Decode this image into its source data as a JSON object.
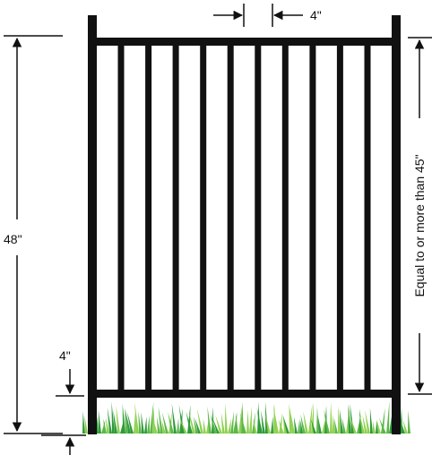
{
  "labels": {
    "picket_spacing": "4\"",
    "total_height": "48\"",
    "ground_clearance": "4\"",
    "inner_height": "Equal to or more than 45\""
  },
  "colors": {
    "fence": "#111111",
    "grass_dark": "#2e9b3a",
    "grass_light": "#8fd14f",
    "background": "#ffffff"
  },
  "fence": {
    "picket_count": 10
  }
}
